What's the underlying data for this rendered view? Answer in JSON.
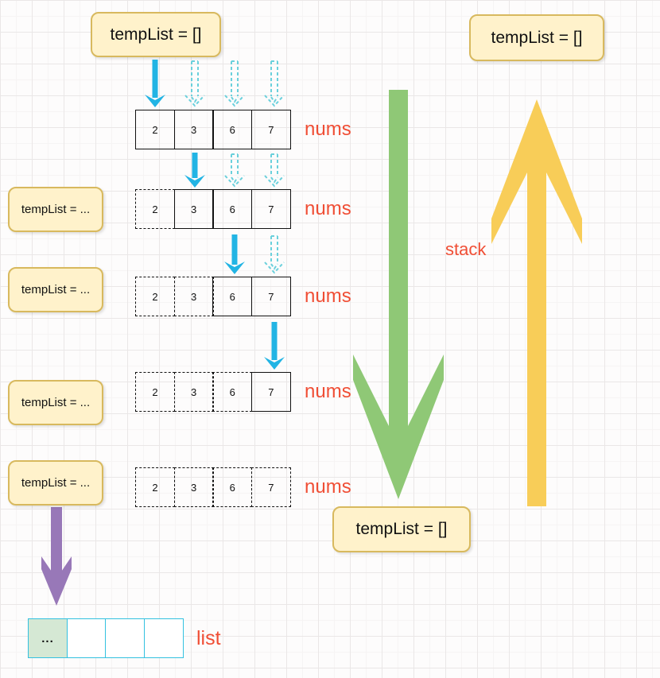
{
  "colors": {
    "box_fill": "#fff2cb",
    "box_border": "#d8b95e",
    "label_orange": "#f04e35",
    "cyan_solid": "#22b4e4",
    "cyan_dashed": "#6ad0dc",
    "green_arrow": "#8fc876",
    "yellow_arrow": "#f8cd58",
    "purple_arrow": "#9878b8",
    "list_cell_fill": "#d5e8d4",
    "list_border": "#33c1e0",
    "cell_border": "#111111"
  },
  "boxes": {
    "top_left": "tempList = []",
    "top_right": "tempList = []",
    "bottom_middle": "tempList = []",
    "left": [
      "tempList = ...",
      "tempList = ...",
      "tempList = ...",
      "tempList = ..."
    ]
  },
  "labels": {
    "nums": "nums",
    "stack": "stack",
    "list": "list"
  },
  "nums_values": [
    "2",
    "3",
    "6",
    "7"
  ],
  "nums_rows": [
    {
      "dashed": [
        false,
        false,
        false,
        false
      ],
      "arrows": [
        "solid",
        "dashed",
        "dashed",
        "dashed"
      ]
    },
    {
      "dashed": [
        true,
        false,
        false,
        false
      ],
      "arrows": [
        null,
        "solid",
        "dashed",
        "dashed"
      ]
    },
    {
      "dashed": [
        true,
        true,
        false,
        false
      ],
      "arrows": [
        null,
        null,
        "solid",
        "dashed"
      ]
    },
    {
      "dashed": [
        true,
        true,
        true,
        false
      ],
      "arrows": [
        null,
        null,
        null,
        "solid"
      ]
    },
    {
      "dashed": [
        true,
        true,
        true,
        true
      ],
      "arrows": [
        null,
        null,
        null,
        null
      ]
    }
  ],
  "list_row": {
    "cells": [
      "...",
      "",
      "",
      ""
    ],
    "first_cell_highlighted": true
  }
}
